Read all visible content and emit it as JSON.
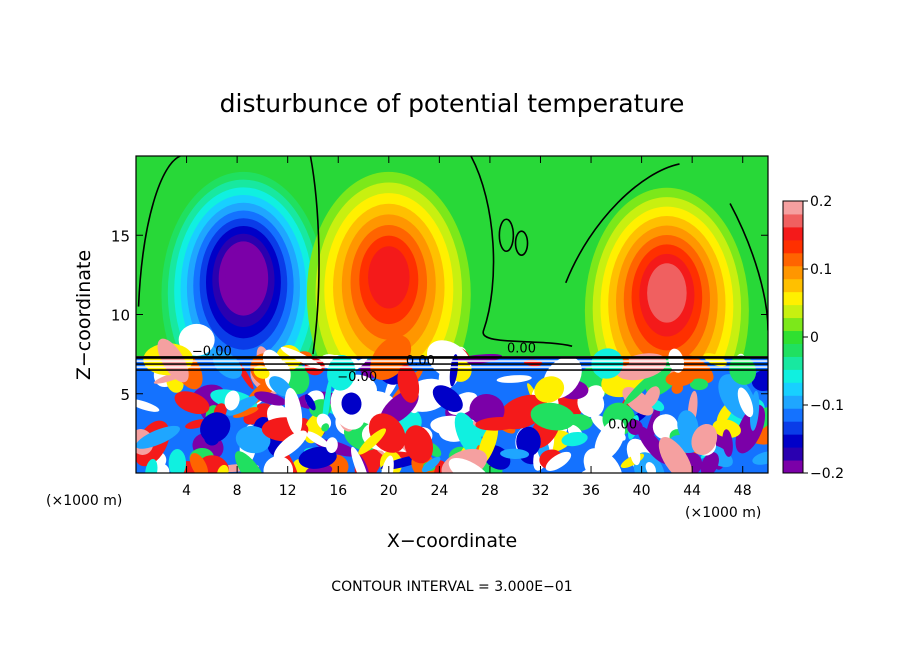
{
  "chart_data": {
    "type": "heatmap",
    "title": "disturbunce of potential temperature",
    "xlabel": "X−coordinate",
    "ylabel": "Z−coordinate",
    "x_unit_left": "(×1000 m)",
    "x_unit_right": "(×1000 m)",
    "footer": "CONTOUR INTERVAL = 3.000E−01",
    "xlim": [
      0,
      50
    ],
    "ylim": [
      0,
      20
    ],
    "x_ticks": [
      4,
      8,
      12,
      16,
      20,
      24,
      28,
      32,
      36,
      40,
      44,
      48
    ],
    "x_tick_labels": [
      "4",
      "8",
      "12",
      "16",
      "20",
      "24",
      "28",
      "32",
      "36",
      "40",
      "44",
      "48"
    ],
    "y_ticks": [
      5,
      10,
      15
    ],
    "y_tick_labels": [
      "5",
      "10",
      "15"
    ],
    "colorbar": {
      "range": [
        -0.2,
        0.2
      ],
      "ticks": [
        -0.2,
        -0.1,
        0,
        0.1,
        0.2
      ],
      "tick_labels": [
        "−0.2",
        "−0.1",
        "0",
        "0.1",
        "0.2"
      ],
      "colors": [
        "#7b00a8",
        "#2a00b0",
        "#0000c8",
        "#0a3ce8",
        "#1472ff",
        "#1fa6ff",
        "#18d0ff",
        "#10f0e0",
        "#18e8a0",
        "#20e060",
        "#30e030",
        "#7ce81a",
        "#c8f010",
        "#fff000",
        "#ffc000",
        "#ff9600",
        "#ff6400",
        "#ff3000",
        "#f41a1a",
        "#f06060",
        "#f5a0a0"
      ]
    },
    "contour_labels": [
      {
        "text": "0.00",
        "x": 30.5,
        "y": 7.6
      },
      {
        "text": "−0.00",
        "x": 6,
        "y": 7.4
      },
      {
        "text": "−0.00",
        "x": 17.5,
        "y": 5.8
      },
      {
        "text": "0.00",
        "x": 22.5,
        "y": 6.8
      },
      {
        "text": "0.00",
        "x": 38.5,
        "y": 2.8
      }
    ],
    "field_features": [
      {
        "kind": "cold anomaly",
        "x": 8.5,
        "z": 12.5,
        "value": -0.19
      },
      {
        "kind": "warm anomaly",
        "x": 20.0,
        "z": 12.5,
        "value": 0.13
      },
      {
        "kind": "warm anomaly",
        "x": 42.0,
        "z": 11.5,
        "value": 0.16
      }
    ]
  }
}
